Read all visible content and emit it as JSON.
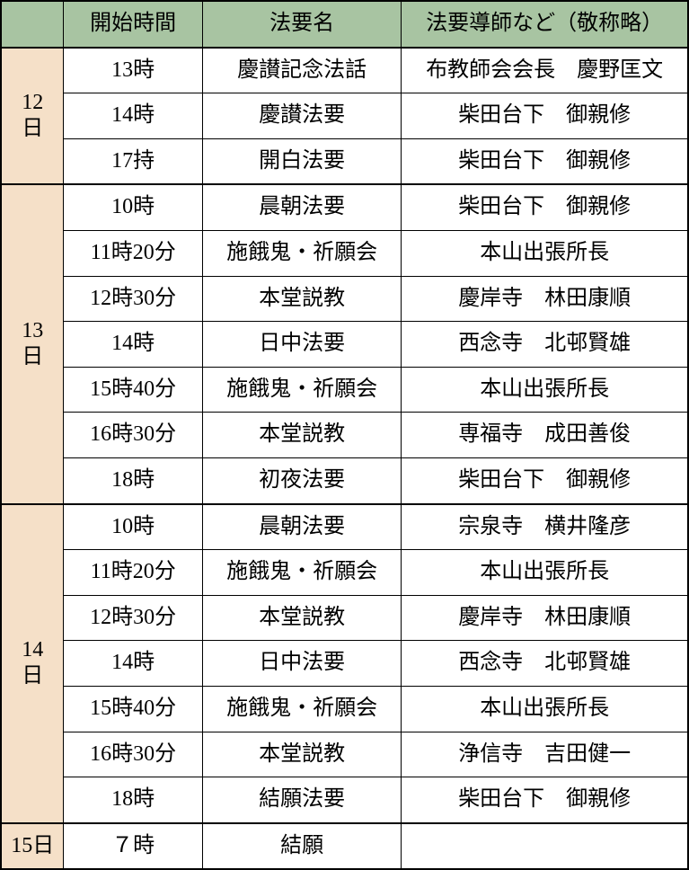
{
  "table": {
    "type": "table",
    "header_bg_color": "#a8c4a2",
    "day_bg_color": "#f5e0c8",
    "border_color": "#000000",
    "font_size": 24,
    "columns": {
      "day": "",
      "time": "開始時間",
      "name": "法要名",
      "leader": "法要導師など（敬称略）"
    },
    "column_widths": {
      "day": 70,
      "time": 155,
      "name": 222,
      "leader": 320
    },
    "days": [
      {
        "label": "12日",
        "rows": [
          {
            "time": "13時",
            "name": "慶讃記念法話",
            "leader": "布教師会会長　慶野匡文"
          },
          {
            "time": "14時",
            "name": "慶讃法要",
            "leader": "柴田台下　御親修"
          },
          {
            "time": "17持",
            "name": "開白法要",
            "leader": "柴田台下　御親修"
          }
        ]
      },
      {
        "label": "13日",
        "rows": [
          {
            "time": "10時",
            "name": "晨朝法要",
            "leader": "柴田台下　御親修"
          },
          {
            "time": "11時20分",
            "name": "施餓鬼・祈願会",
            "leader": "本山出張所長"
          },
          {
            "time": "12時30分",
            "name": "本堂説教",
            "leader": "慶岸寺　林田康順"
          },
          {
            "time": "14時",
            "name": "日中法要",
            "leader": "西念寺　北邨賢雄"
          },
          {
            "time": "15時40分",
            "name": "施餓鬼・祈願会",
            "leader": "本山出張所長"
          },
          {
            "time": "16時30分",
            "name": "本堂説教",
            "leader": "専福寺　成田善俊"
          },
          {
            "time": "18時",
            "name": "初夜法要",
            "leader": "柴田台下　御親修"
          }
        ]
      },
      {
        "label": "14日",
        "rows": [
          {
            "time": "10時",
            "name": "晨朝法要",
            "leader": "宗泉寺　横井隆彦"
          },
          {
            "time": "11時20分",
            "name": "施餓鬼・祈願会",
            "leader": "本山出張所長"
          },
          {
            "time": "12時30分",
            "name": "本堂説教",
            "leader": "慶岸寺　林田康順"
          },
          {
            "time": "14時",
            "name": "日中法要",
            "leader": "西念寺　北邨賢雄"
          },
          {
            "time": "15時40分",
            "name": "施餓鬼・祈願会",
            "leader": "本山出張所長"
          },
          {
            "time": "16時30分",
            "name": "本堂説教",
            "leader": "浄信寺　吉田健一"
          },
          {
            "time": "18時",
            "name": "結願法要",
            "leader": "柴田台下　御親修"
          }
        ]
      },
      {
        "label": "15日",
        "rows": [
          {
            "time": "７時",
            "name": "結願",
            "leader": ""
          }
        ]
      }
    ]
  }
}
